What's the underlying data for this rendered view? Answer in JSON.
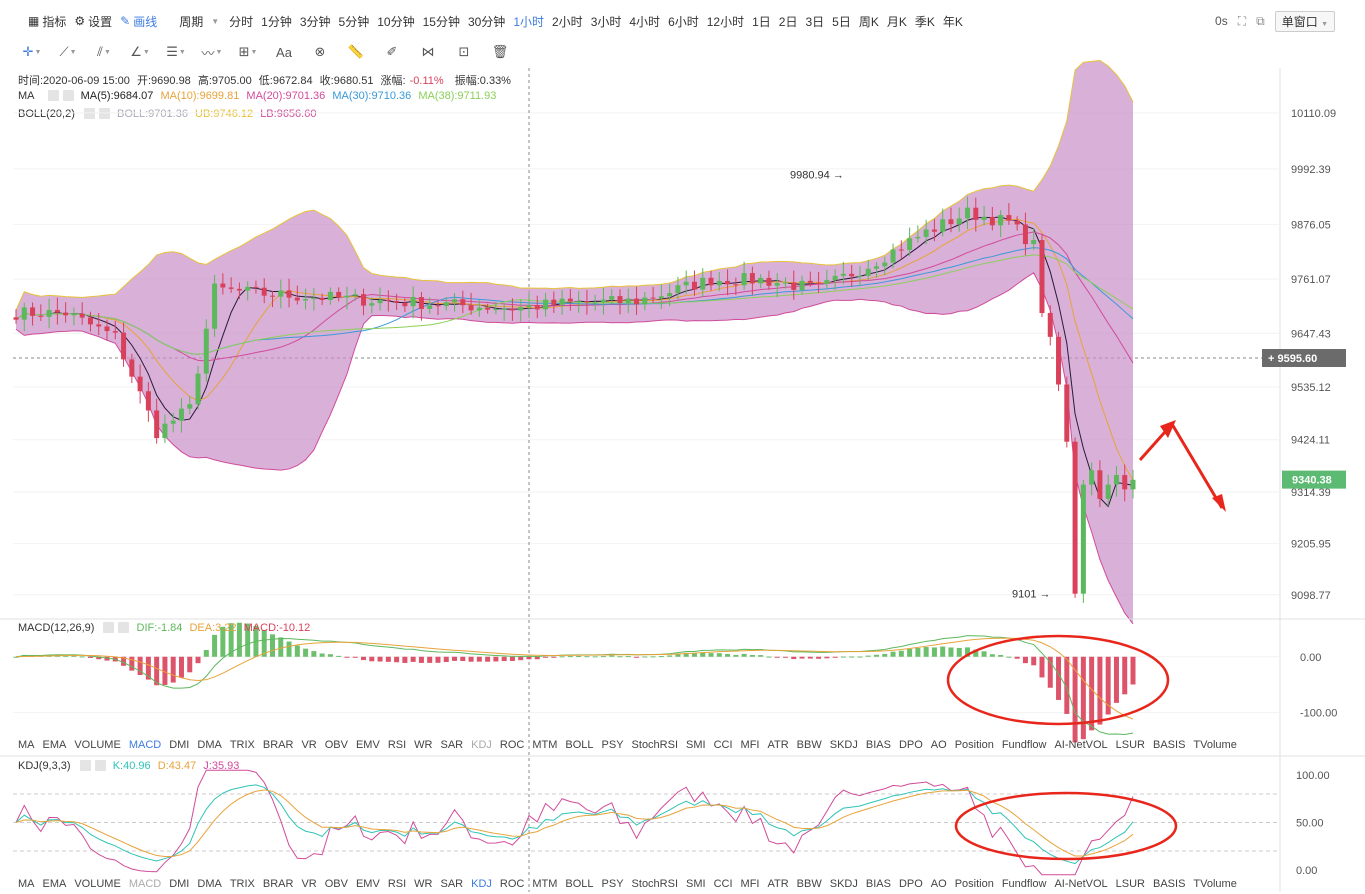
{
  "toolbar": {
    "indicator": "指标",
    "settings": "设置",
    "draw": "画线",
    "period": "周期",
    "periods": [
      "分时",
      "1分钟",
      "3分钟",
      "5分钟",
      "10分钟",
      "15分钟",
      "30分钟",
      "1小时",
      "2小时",
      "3小时",
      "4小时",
      "6小时",
      "12小时",
      "1日",
      "2日",
      "3日",
      "5日",
      "周K",
      "月K",
      "季K",
      "年K"
    ],
    "active_period": "1小时",
    "timer": "0s",
    "window_mode": "单窗口"
  },
  "ohlc": {
    "time": "时间:2020-06-09 15:00",
    "open": "开:9690.98",
    "high": "高:9705.00",
    "low": "低:9672.84",
    "close": "收:9680.51",
    "change": "涨幅:",
    "change_val": "-0.11%",
    "amplitude": "振幅:0.33%"
  },
  "ma_row": {
    "label": "MA",
    "ma5": "MA(5):9684.07",
    "ma10": "MA(10):9699.81",
    "ma20": "MA(20):9701.36",
    "ma30": "MA(30):9710.36",
    "ma38": "MA(38):9711.93"
  },
  "boll_row": {
    "label": "BOLL(20,2)",
    "boll": "BOLL:9701.36",
    "ub": "UB:9746.12",
    "lb": "LB:9656.60"
  },
  "macd_row": {
    "label": "MACD(12,26,9)",
    "dif": "DIF:-1.84",
    "dea": "DEA:3.22",
    "macd": "MACD:-10.12"
  },
  "kdj_row": {
    "label": "KDJ(9,3,3)",
    "k": "K:40.96",
    "d": "D:43.47",
    "j": "J:35.93"
  },
  "tabs_macd_active": "MACD",
  "tabs_kdj_active": "KDJ",
  "indicator_tabs": [
    "MA",
    "EMA",
    "VOLUME",
    "MACD",
    "DMI",
    "DMA",
    "TRIX",
    "BRAR",
    "VR",
    "OBV",
    "EMV",
    "RSI",
    "WR",
    "SAR",
    "KDJ",
    "ROC",
    "MTM",
    "BOLL",
    "PSY",
    "StochRSI",
    "SMI",
    "CCI",
    "MFI",
    "ATR",
    "BBW",
    "SKDJ",
    "BIAS",
    "DPO",
    "AO",
    "Position",
    "Fundflow",
    "AI-NetVOL",
    "LSUR",
    "BASIS",
    "TVolume"
  ],
  "price_axis": {
    "ticks": [
      "10110.09",
      "9992.39",
      "9876.05",
      "9761.07",
      "9647.43",
      "9535.12",
      "9424.11",
      "9314.39",
      "9205.95",
      "9098.77"
    ],
    "crosshair_price": "9595.60",
    "last_price": "9340.38"
  },
  "annotations": {
    "high_mark": "9980.94",
    "low_mark": "9101"
  },
  "macd_axis": {
    "ticks": [
      "0.00",
      "-100.00"
    ]
  },
  "kdj_axis": {
    "ticks": [
      "100.00",
      "50.00",
      "0.00"
    ]
  },
  "colors": {
    "up": "#5cb85c",
    "down": "#d9415a",
    "boll_fill": "#c88fc8",
    "accent": "#3d7be0",
    "annotation": "#e8261b",
    "last_price_bg": "#5dba73"
  },
  "chart_data": {
    "type": "candlestick",
    "price_range": [
      9050,
      10200
    ],
    "series_summary": {
      "start_price": 9690,
      "early_low": 9420,
      "plateau": 9720,
      "high": 9980.94,
      "peak_close": 9900,
      "low": 9101,
      "last": 9340.38
    }
  }
}
